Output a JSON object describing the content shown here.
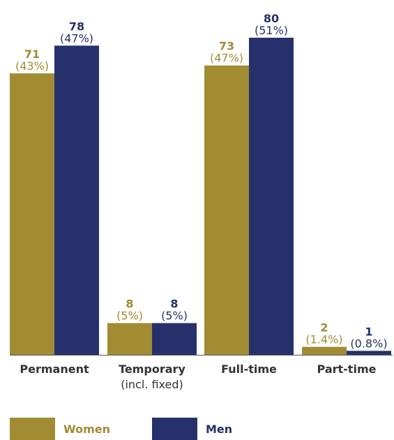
{
  "colors": {
    "women": "#A18C33",
    "men": "#26316B",
    "axis": "#555555"
  },
  "chart_data": {
    "type": "bar",
    "categories": [
      "Permanent",
      "Temporary",
      "Full-time",
      "Part-time"
    ],
    "category_sublabels": [
      "",
      "(incl. fixed)",
      "",
      ""
    ],
    "series": [
      {
        "name": "Women",
        "values": [
          71,
          8,
          73,
          2
        ],
        "percent_labels": [
          "(43%)",
          "(5%)",
          "(47%)",
          "(1.4%)"
        ]
      },
      {
        "name": "Men",
        "values": [
          78,
          8,
          80,
          1
        ],
        "percent_labels": [
          "(47%)",
          "(5%)",
          "(51%)",
          "(0.8%)"
        ]
      }
    ],
    "ylim": [
      0,
      80
    ],
    "grid": false,
    "legend_position": "bottom-left",
    "title": "",
    "xlabel": "",
    "ylabel": ""
  }
}
